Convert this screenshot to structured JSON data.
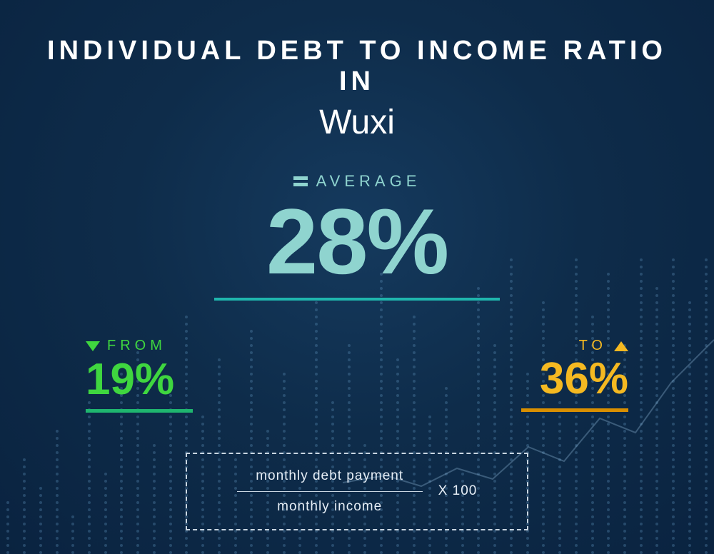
{
  "background": {
    "gradient_center": "#153a5e",
    "gradient_mid": "#0e2c4a",
    "gradient_edge": "#0a2340",
    "dot_color": "#5a8db5",
    "trendline_color": "#8fb8d8"
  },
  "title": {
    "line1": "INDIVIDUAL  DEBT  TO  INCOME RATIO  IN",
    "line2": "Wuxi",
    "color": "#ffffff",
    "line1_fontsize": 38,
    "line2_fontsize": 48
  },
  "average": {
    "label": "AVERAGE",
    "value": "28%",
    "color": "#8fd4cf",
    "value_fontsize": 130,
    "label_fontsize": 22,
    "underline_color": "#1fb6ad",
    "underline_width": 400
  },
  "from": {
    "label": "FROM",
    "value": "19%",
    "color": "#3fd63f",
    "direction": "down",
    "value_fontsize": 62,
    "underline_color": "#1fb66f"
  },
  "to": {
    "label": "TO",
    "value": "36%",
    "color": "#f5b921",
    "direction": "up",
    "value_fontsize": 62,
    "underline_color": "#d98f00"
  },
  "formula": {
    "numerator": "monthly debt payment",
    "denominator": "monthly income",
    "multiplier": "X 100",
    "border_color": "#c9d6e2",
    "text_color": "#e6eef6"
  },
  "dot_bars": {
    "count": 44,
    "heights": [
      8,
      14,
      10,
      18,
      6,
      22,
      12,
      26,
      30,
      16,
      24,
      34,
      20,
      28,
      14,
      32,
      18,
      26,
      10,
      36,
      22,
      30,
      16,
      40,
      28,
      34,
      20,
      24,
      12,
      38,
      30,
      42,
      26,
      36,
      22,
      44,
      34,
      40,
      30,
      46,
      38,
      42,
      36,
      48
    ]
  }
}
